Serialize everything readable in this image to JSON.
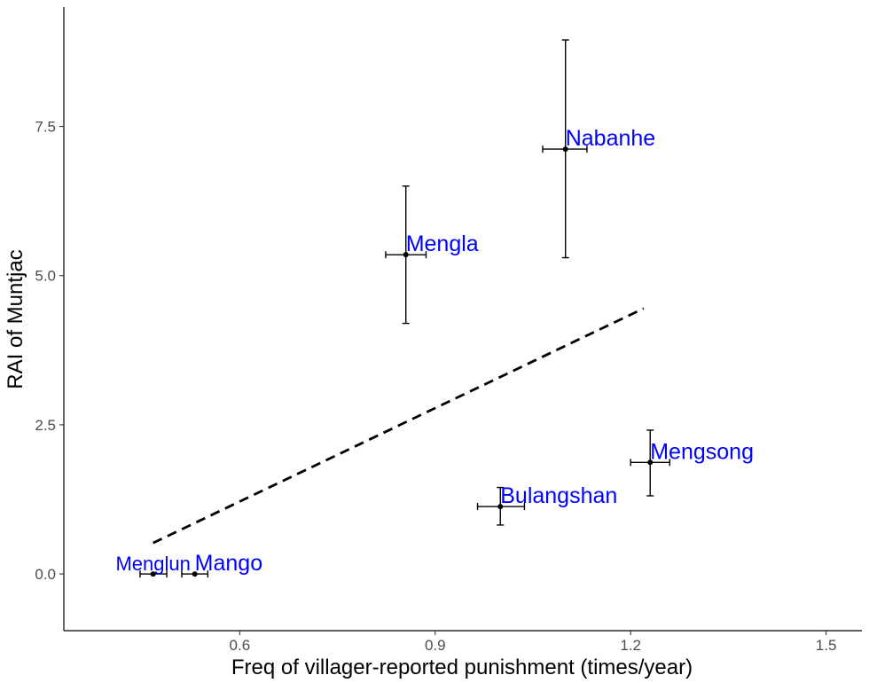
{
  "chart_data": {
    "type": "scatter",
    "xlabel": "Freq of villager-reported punishment (times/year)",
    "ylabel": "RAI of Muntjac",
    "xlim": [
      0.33,
      1.555
    ],
    "ylim": [
      -0.95,
      9.5
    ],
    "x_ticks": [
      0.6,
      0.9,
      1.2,
      1.5
    ],
    "x_tick_labels": [
      "0.6",
      "0.9",
      "1.2",
      "1.5"
    ],
    "y_ticks": [
      0.0,
      2.5,
      5.0,
      7.5
    ],
    "y_tick_labels": [
      "0.0",
      "2.5",
      "5.0",
      "7.5"
    ],
    "grid": false,
    "legend": "none",
    "points": [
      {
        "label": "Menglun",
        "x": 0.467,
        "y": 0.0,
        "x_err": [
          0.447,
          0.488
        ],
        "y_err": [
          0.0,
          0.0
        ],
        "label_color": "#0b3fa0"
      },
      {
        "label": "Mango",
        "x": 0.531,
        "y": 0.0,
        "x_err": [
          0.511,
          0.551
        ],
        "y_err": [
          0.0,
          0.0
        ],
        "label_color": "#0000ff"
      },
      {
        "label": "Mengla",
        "x": 0.855,
        "y": 5.35,
        "x_err": [
          0.824,
          0.886
        ],
        "y_err": [
          4.2,
          6.5
        ],
        "label_color": "#0000ff"
      },
      {
        "label": "Nabanhe",
        "x": 1.1,
        "y": 7.12,
        "x_err": [
          1.065,
          1.133
        ],
        "y_err": [
          5.3,
          8.95
        ],
        "label_color": "#0000ff"
      },
      {
        "label": "Bulangshan",
        "x": 1.0,
        "y": 1.13,
        "x_err": [
          0.965,
          1.037
        ],
        "y_err": [
          0.82,
          1.45
        ],
        "label_color": "#0000ff"
      },
      {
        "label": "Mengsong",
        "x": 1.23,
        "y": 1.87,
        "x_err": [
          1.2,
          1.26
        ],
        "y_err": [
          1.31,
          2.41
        ],
        "label_color": "#0000ff"
      }
    ],
    "trend_line": {
      "style": "dashed",
      "x": [
        0.467,
        1.22
      ],
      "y": [
        0.52,
        4.45
      ]
    },
    "colors": {
      "points": "#000000",
      "labels": "#0000ff",
      "trend": "#000000"
    }
  }
}
